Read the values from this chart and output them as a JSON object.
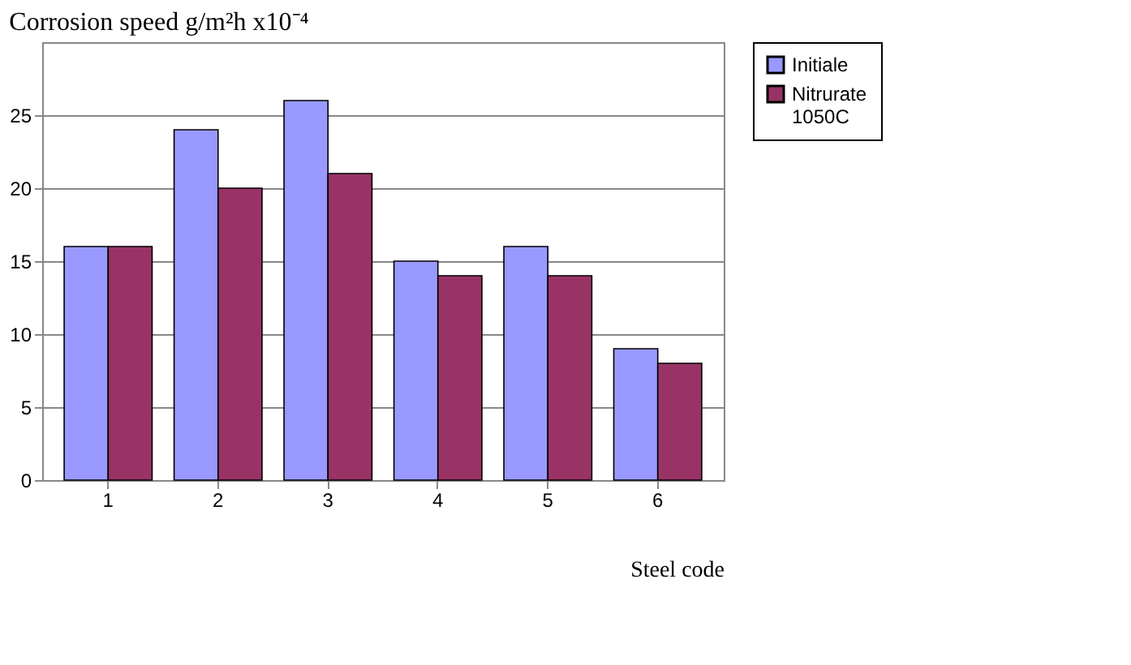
{
  "chart_data": {
    "type": "bar",
    "title": "Corrosion speed g/m²h x10⁻⁴",
    "xlabel": "Steel code",
    "categories": [
      "1",
      "2",
      "3",
      "4",
      "5",
      "6"
    ],
    "series": [
      {
        "name": "Initiale",
        "color": "#9999ff",
        "values": [
          16,
          24,
          26,
          15,
          16,
          9
        ]
      },
      {
        "name": "Nitrurate 1050C",
        "color": "#993366",
        "values": [
          16,
          20,
          21,
          14,
          14,
          8
        ]
      }
    ],
    "ylim": [
      0,
      30
    ],
    "yticks": [
      0,
      5,
      10,
      15,
      20,
      25
    ],
    "grid": "y",
    "legend": "right"
  }
}
